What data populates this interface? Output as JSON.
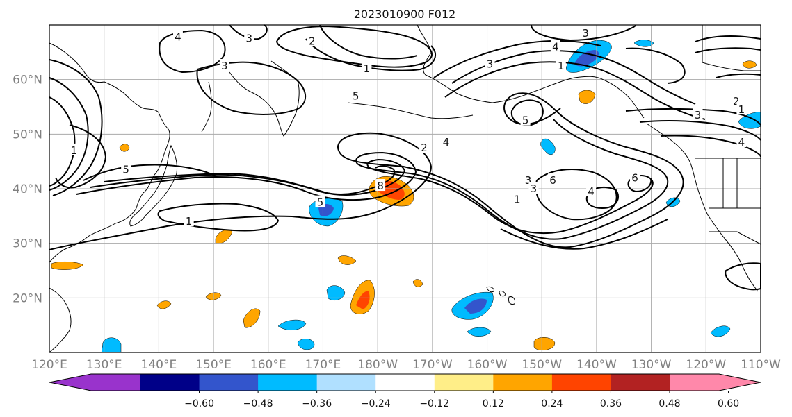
{
  "title": "2023010900 F012",
  "map": {
    "lon_range": [
      120,
      250
    ],
    "lat_range": [
      10,
      70
    ],
    "lat_ticks": [
      {
        "value": 20,
        "label": "20°N"
      },
      {
        "value": 30,
        "label": "30°N"
      },
      {
        "value": 40,
        "label": "40°N"
      },
      {
        "value": 50,
        "label": "50°N"
      },
      {
        "value": 60,
        "label": "60°N"
      }
    ],
    "lon_ticks": [
      {
        "value": 120,
        "label": "120°E"
      },
      {
        "value": 130,
        "label": "130°E"
      },
      {
        "value": 140,
        "label": "140°E"
      },
      {
        "value": 150,
        "label": "150°E"
      },
      {
        "value": 160,
        "label": "160°E"
      },
      {
        "value": 170,
        "label": "170°E"
      },
      {
        "value": 180,
        "label": "180°W"
      },
      {
        "value": 190,
        "label": "170°W"
      },
      {
        "value": 200,
        "label": "160°W"
      },
      {
        "value": 210,
        "label": "150°W"
      },
      {
        "value": 220,
        "label": "140°W"
      },
      {
        "value": 230,
        "label": "130°W"
      },
      {
        "value": 240,
        "label": "120°W"
      },
      {
        "value": 250,
        "label": "110°W"
      }
    ],
    "contour_labels": [
      {
        "text": "4",
        "lon": 143.5,
        "lat": 67.8
      },
      {
        "text": "3",
        "lon": 156.5,
        "lat": 67.5
      },
      {
        "text": "2",
        "lon": 168.0,
        "lat": 67.0
      },
      {
        "text": "3",
        "lon": 152.0,
        "lat": 62.5
      },
      {
        "text": "1",
        "lon": 178.0,
        "lat": 62.0
      },
      {
        "text": "5",
        "lon": 176.0,
        "lat": 57.0
      },
      {
        "text": "3",
        "lon": 200.5,
        "lat": 62.8
      },
      {
        "text": "4",
        "lon": 212.5,
        "lat": 66.0
      },
      {
        "text": "3",
        "lon": 218.0,
        "lat": 68.5
      },
      {
        "text": "1",
        "lon": 213.5,
        "lat": 62.5
      },
      {
        "text": "5",
        "lon": 207.0,
        "lat": 52.5
      },
      {
        "text": "4",
        "lon": 192.5,
        "lat": 48.5
      },
      {
        "text": "2",
        "lon": 188.5,
        "lat": 47.5
      },
      {
        "text": "6",
        "lon": 212.0,
        "lat": 41.5
      },
      {
        "text": "3",
        "lon": 207.5,
        "lat": 41.5
      },
      {
        "text": "3",
        "lon": 208.5,
        "lat": 40.0
      },
      {
        "text": "1",
        "lon": 205.5,
        "lat": 38.0
      },
      {
        "text": "4",
        "lon": 219.0,
        "lat": 39.5
      },
      {
        "text": "6",
        "lon": 227.0,
        "lat": 42.0
      },
      {
        "text": "1",
        "lon": 124.5,
        "lat": 47.0
      },
      {
        "text": "5",
        "lon": 134.0,
        "lat": 43.5
      },
      {
        "text": "8",
        "lon": 180.5,
        "lat": 40.5
      },
      {
        "text": "5",
        "lon": 169.5,
        "lat": 37.5
      },
      {
        "text": "1",
        "lon": 145.5,
        "lat": 34.0
      },
      {
        "text": "2",
        "lon": 245.5,
        "lat": 56.0
      },
      {
        "text": "1",
        "lon": 246.5,
        "lat": 54.5
      },
      {
        "text": "3",
        "lon": 238.5,
        "lat": 53.5
      },
      {
        "text": "4",
        "lon": 246.5,
        "lat": 48.5
      }
    ]
  },
  "colorbar": {
    "colors": [
      "#9933cc",
      "#000088",
      "#3355cc",
      "#00bbff",
      "#b0e0ff",
      "#ffffff",
      "#ffee88",
      "#ffa500",
      "#ff4400",
      "#b22222",
      "#ff88aa"
    ],
    "tick_labels": [
      "−0.60",
      "−0.48",
      "−0.36",
      "−0.24",
      "−0.12",
      "0.12",
      "0.24",
      "0.36",
      "0.48",
      "0.60"
    ]
  },
  "colors": {
    "land_outline": "#000000",
    "contour": "#000000",
    "grid": "#aaaaaa",
    "tick_label": "#808080"
  }
}
